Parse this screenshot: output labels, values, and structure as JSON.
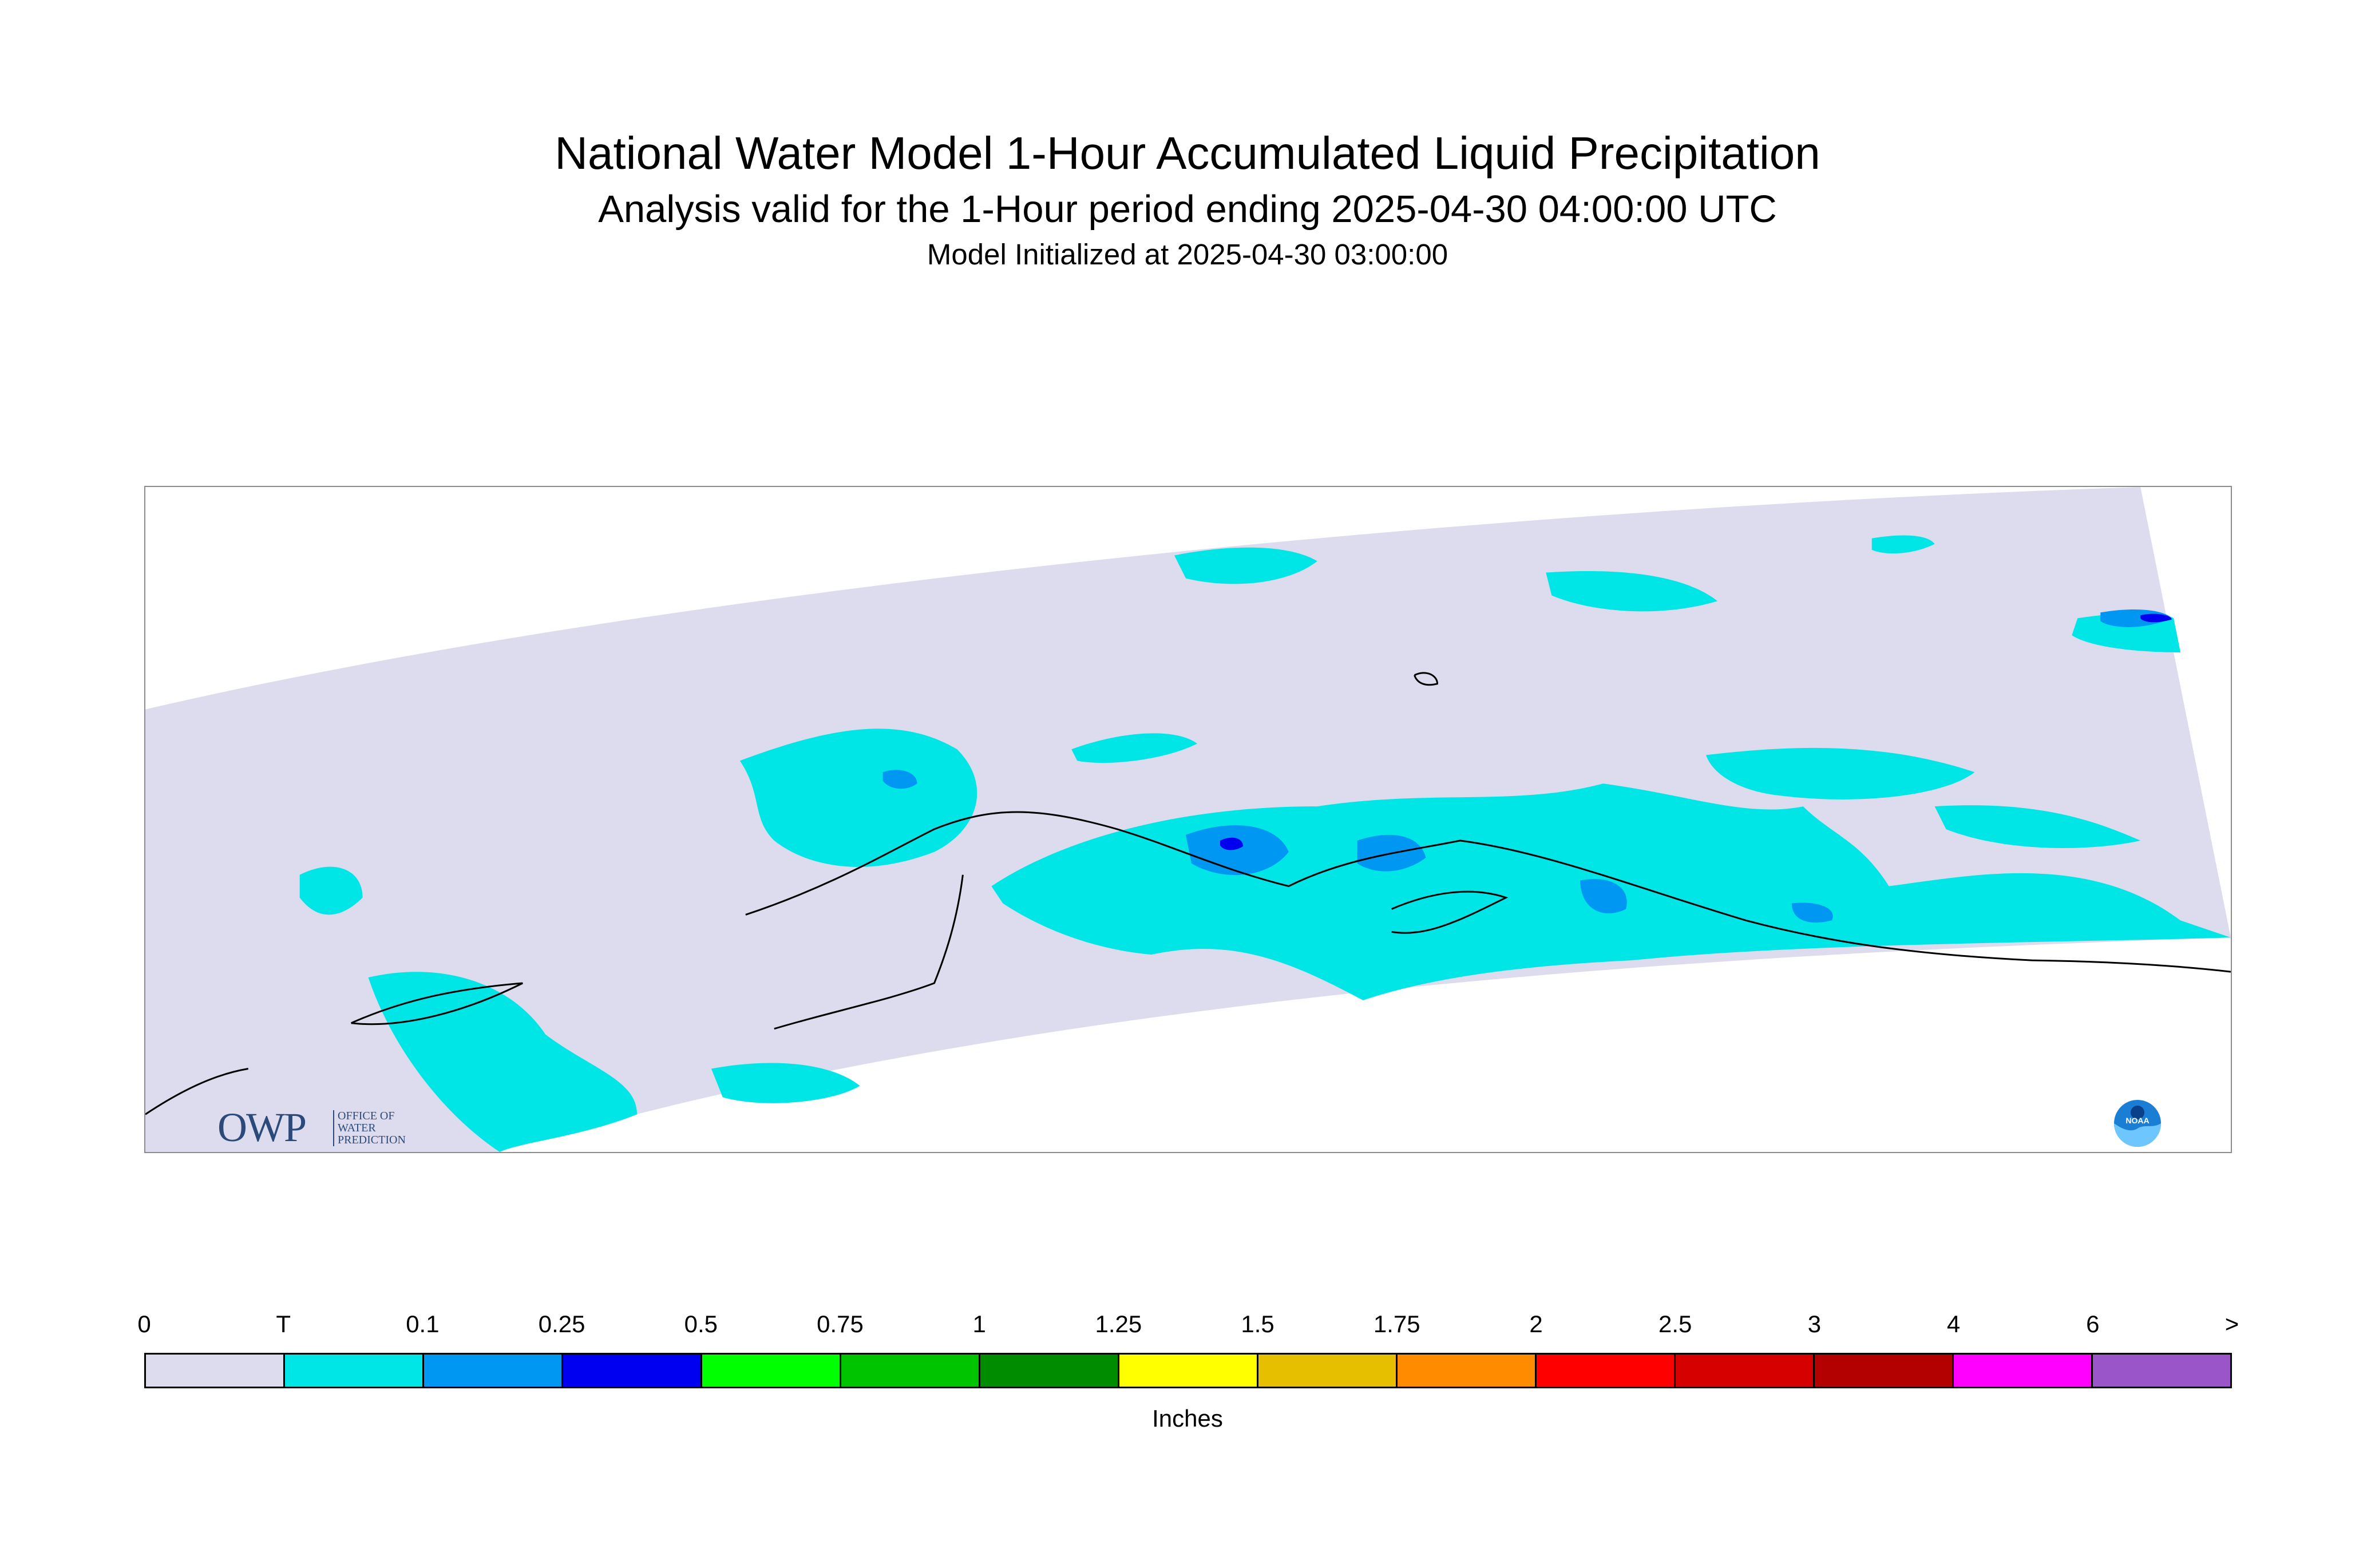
{
  "header": {
    "title": "National Water Model 1-Hour Accumulated Liquid Precipitation",
    "subtitle": "Analysis valid for the 1-Hour period ending 2025-04-30 04:00:00 UTC",
    "init_line": "Model Initialized at 2025-04-30 03:00:00"
  },
  "logos": {
    "owp": {
      "big": "OWP",
      "lines": [
        "OFFICE OF",
        "WATER",
        "PREDICTION"
      ]
    },
    "noaa": {
      "text": "NOAA"
    }
  },
  "legend": {
    "unit": "Inches",
    "tick_labels": [
      "0",
      "T",
      "0.1",
      "0.25",
      "0.5",
      "0.75",
      "1",
      "1.25",
      "1.5",
      "1.75",
      "2",
      "2.5",
      "3",
      "4",
      "6",
      ">"
    ],
    "colors": [
      "#dcdcee",
      "#00e5e5",
      "#0097f2",
      "#0000f0",
      "#00ff00",
      "#00c400",
      "#008c00",
      "#ffff00",
      "#e5bf00",
      "#ff8c00",
      "#ff0000",
      "#d60000",
      "#b30000",
      "#ff00ff",
      "#9a55c8"
    ]
  },
  "map": {
    "colors": {
      "domain": "#dcdcee",
      "trace": "#00e5e5",
      "light": "#0097f2",
      "moderate": "#0000f0",
      "coast": "#000000"
    }
  }
}
